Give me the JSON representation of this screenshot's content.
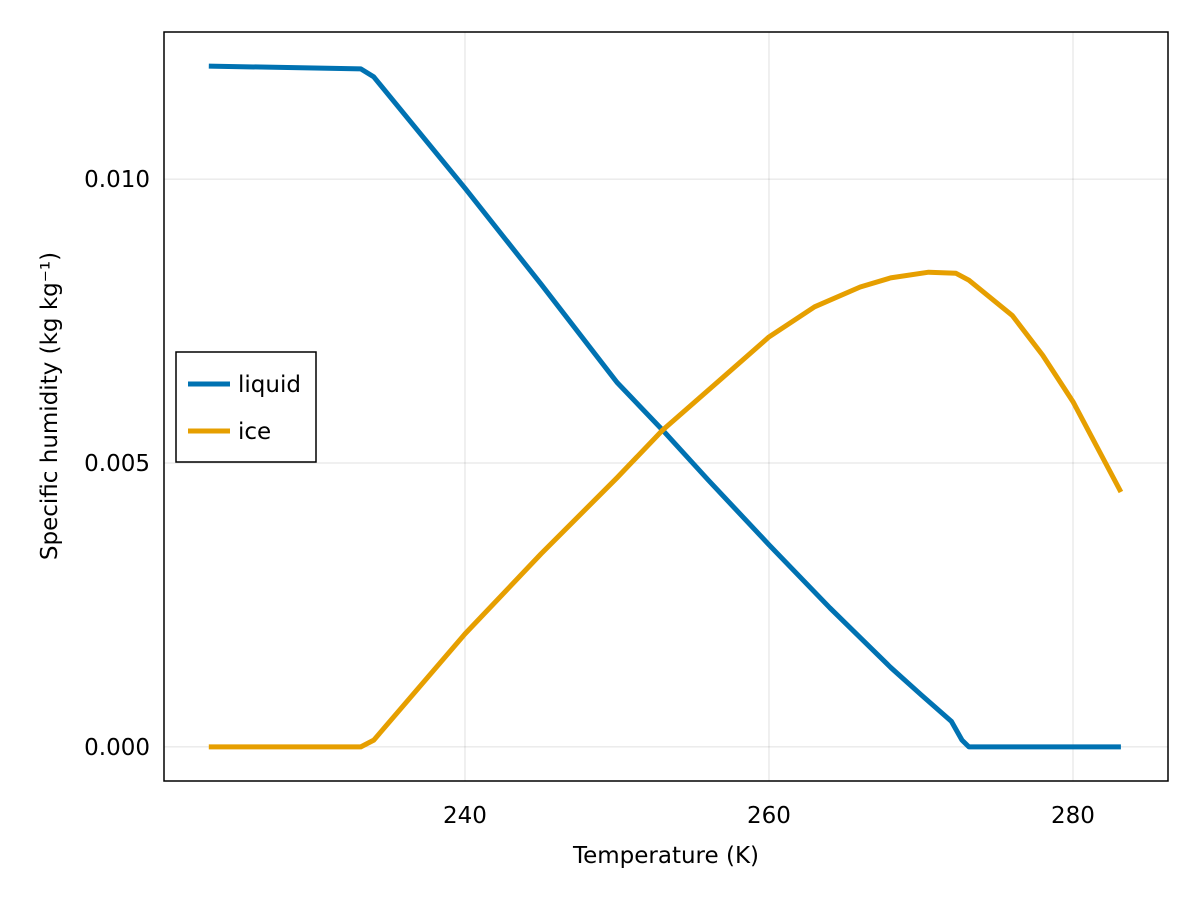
{
  "chart_data": {
    "type": "line",
    "title": "",
    "xlabel": "Temperature (K)",
    "ylabel": "Specific humidity (kg kg⁻¹)",
    "xlim": [
      220.2,
      286.25
    ],
    "ylim": [
      -0.0006,
      0.01259
    ],
    "xticks": [
      240,
      260,
      280
    ],
    "xtick_labels": [
      "240",
      "260",
      "280"
    ],
    "yticks": [
      0.0,
      0.005,
      0.01
    ],
    "ytick_labels": [
      "0.000",
      "0.005",
      "0.010"
    ],
    "grid": true,
    "legend_position": "left-middle",
    "series": [
      {
        "name": "liquid",
        "color": "#0072b2",
        "x": [
          223.15,
          233.15,
          234.0,
          240.0,
          245.0,
          250.0,
          253.0,
          256.0,
          260.0,
          264.0,
          268.0,
          270.0,
          272.0,
          272.7,
          273.15,
          278.0,
          283.15
        ],
        "y": [
          0.01199,
          0.01194,
          0.0118,
          0.00984,
          0.00815,
          0.00642,
          0.00558,
          0.0047,
          0.00356,
          0.00245,
          0.0014,
          0.00092,
          0.00045,
          0.00012,
          0.0,
          0.0,
          0.0
        ]
      },
      {
        "name": "ice",
        "color": "#e69f00",
        "x": [
          223.15,
          233.15,
          234.0,
          240.0,
          245.0,
          250.0,
          253.0,
          256.0,
          260.0,
          263.0,
          266.0,
          268.0,
          270.5,
          272.3,
          273.15,
          276.0,
          278.0,
          280.0,
          283.15
        ],
        "y": [
          0.0,
          0.0,
          0.00012,
          0.00199,
          0.0034,
          0.00474,
          0.00558,
          0.00628,
          0.00722,
          0.00775,
          0.0081,
          0.00826,
          0.00836,
          0.00834,
          0.00822,
          0.0076,
          0.0069,
          0.00608,
          0.00449
        ]
      }
    ]
  }
}
